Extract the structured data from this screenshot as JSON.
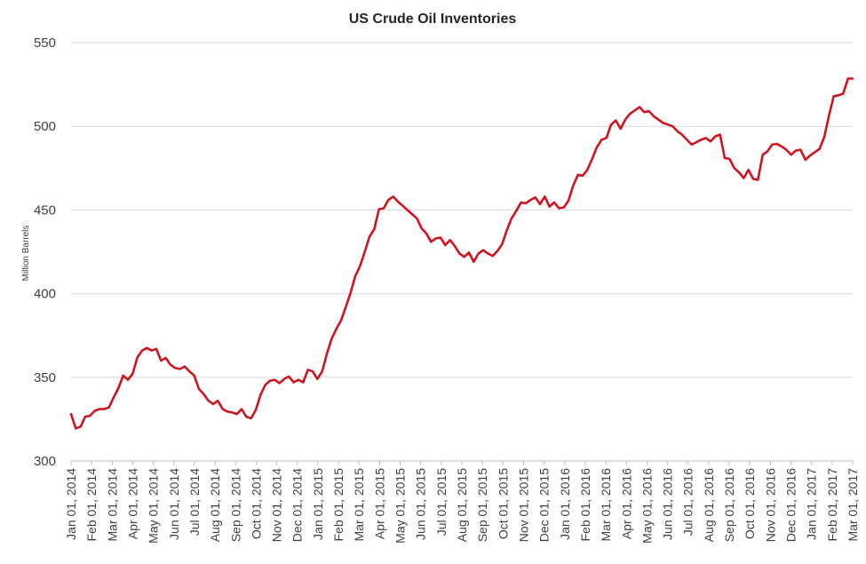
{
  "chart_data": {
    "type": "line",
    "title": "US Crude Oil Inventories",
    "xlabel": "",
    "ylabel": "Million Barrels",
    "ylim": [
      300,
      550
    ],
    "yticks": [
      300,
      350,
      400,
      450,
      500,
      550
    ],
    "grid": true,
    "legend": "none",
    "line_color": "#d0141e",
    "x_tick_labels": [
      "Jan 01, 2014",
      "Feb 01, 2014",
      "Mar 01, 2014",
      "Apr 01, 2014",
      "May 01, 2014",
      "Jun 01, 2014",
      "Jul 01, 2014",
      "Aug 01, 2014",
      "Sep 01, 2014",
      "Oct 01, 2014",
      "Nov 01, 2014",
      "Dec 01, 2014",
      "Jan 01, 2015",
      "Feb 01, 2015",
      "Mar 01, 2015",
      "Apr 01, 2015",
      "May 01, 2015",
      "Jun 01, 2015",
      "Jul 01, 2015",
      "Aug 01, 2015",
      "Sep 01, 2015",
      "Oct 01, 2015",
      "Nov 01, 2015",
      "Dec 01, 2015",
      "Jan 01, 2016",
      "Feb 01, 2016",
      "Mar 01, 2016",
      "Apr 01, 2016",
      "May 01, 2016",
      "Jun 01, 2016",
      "Jul 01, 2016",
      "Aug 01, 2016",
      "Sep 01, 2016",
      "Oct 01, 2016",
      "Nov 01, 2016",
      "Dec 01, 2016",
      "Jan 01, 2017",
      "Feb 01, 2017",
      "Mar 01, 2017"
    ],
    "x_range": [
      "2014-01-03",
      "2017-03-03"
    ],
    "series": [
      {
        "x": [
          "2014-01-03",
          "2014-01-10",
          "2014-01-17",
          "2014-01-24",
          "2014-01-31",
          "2014-02-07",
          "2014-02-14",
          "2014-02-21",
          "2014-02-28",
          "2014-03-07",
          "2014-03-14",
          "2014-03-21",
          "2014-03-28",
          "2014-04-04",
          "2014-04-11",
          "2014-04-18",
          "2014-04-25",
          "2014-05-02",
          "2014-05-09",
          "2014-05-16",
          "2014-05-23",
          "2014-05-30",
          "2014-06-06",
          "2014-06-13",
          "2014-06-20",
          "2014-06-27",
          "2014-07-04",
          "2014-07-11",
          "2014-07-18",
          "2014-07-25",
          "2014-08-01",
          "2014-08-08",
          "2014-08-15",
          "2014-08-22",
          "2014-08-29",
          "2014-09-05",
          "2014-09-12",
          "2014-09-19",
          "2014-09-26",
          "2014-10-03",
          "2014-10-10",
          "2014-10-17",
          "2014-10-24",
          "2014-10-31",
          "2014-11-07",
          "2014-11-14",
          "2014-11-21",
          "2014-11-28",
          "2014-12-05",
          "2014-12-12",
          "2014-12-19",
          "2014-12-26",
          "2015-01-02",
          "2015-01-09",
          "2015-01-16",
          "2015-01-23",
          "2015-01-30",
          "2015-02-06",
          "2015-02-13",
          "2015-02-20",
          "2015-02-27",
          "2015-03-06",
          "2015-03-13",
          "2015-03-20",
          "2015-03-27",
          "2015-04-03",
          "2015-04-10",
          "2015-04-17",
          "2015-04-24",
          "2015-05-01",
          "2015-05-08",
          "2015-05-15",
          "2015-05-22",
          "2015-05-29",
          "2015-06-05",
          "2015-06-12",
          "2015-06-19",
          "2015-06-26",
          "2015-07-03",
          "2015-07-10",
          "2015-07-17",
          "2015-07-24",
          "2015-07-31",
          "2015-08-07",
          "2015-08-14",
          "2015-08-21",
          "2015-08-28",
          "2015-09-04",
          "2015-09-11",
          "2015-09-18",
          "2015-09-25",
          "2015-10-02",
          "2015-10-09",
          "2015-10-16",
          "2015-10-23",
          "2015-10-30",
          "2015-11-06",
          "2015-11-13",
          "2015-11-20",
          "2015-11-27",
          "2015-12-04",
          "2015-12-11",
          "2015-12-18",
          "2015-12-25",
          "2016-01-01",
          "2016-01-08",
          "2016-01-15",
          "2016-01-22",
          "2016-01-29",
          "2016-02-05",
          "2016-02-12",
          "2016-02-19",
          "2016-02-26",
          "2016-03-04",
          "2016-03-11",
          "2016-03-18",
          "2016-03-25",
          "2016-04-01",
          "2016-04-08",
          "2016-04-15",
          "2016-04-22",
          "2016-04-29",
          "2016-05-06",
          "2016-05-13",
          "2016-05-20",
          "2016-05-27",
          "2016-06-03",
          "2016-06-10",
          "2016-06-17",
          "2016-06-24",
          "2016-07-01",
          "2016-07-08",
          "2016-07-15",
          "2016-07-22",
          "2016-07-29",
          "2016-08-05",
          "2016-08-12",
          "2016-08-19",
          "2016-08-26",
          "2016-09-02",
          "2016-09-09",
          "2016-09-16",
          "2016-09-23",
          "2016-09-30",
          "2016-10-07",
          "2016-10-14",
          "2016-10-21",
          "2016-10-28",
          "2016-11-04",
          "2016-11-11",
          "2016-11-18",
          "2016-11-25",
          "2016-12-02",
          "2016-12-09",
          "2016-12-16",
          "2016-12-23",
          "2016-12-30",
          "2017-01-06",
          "2017-01-13",
          "2017-01-20",
          "2017-01-27",
          "2017-02-03",
          "2017-02-10",
          "2017-02-17",
          "2017-02-24",
          "2017-03-03"
        ],
        "values": [
          328.0,
          319.5,
          320.5,
          326.5,
          327.0,
          330.0,
          331.0,
          331.0,
          332.0,
          338.0,
          343.5,
          351.0,
          348.5,
          352.0,
          362.0,
          366.0,
          367.5,
          366.0,
          367.0,
          360.0,
          361.5,
          357.5,
          355.5,
          355.0,
          356.5,
          353.5,
          351.0,
          343.0,
          340.0,
          336.0,
          334.0,
          336.0,
          331.0,
          329.5,
          329.0,
          328.0,
          331.0,
          326.5,
          325.5,
          330.5,
          339.5,
          345.5,
          348.0,
          348.5,
          346.5,
          349.0,
          350.5,
          347.0,
          348.5,
          347.0,
          354.5,
          353.5,
          349.0,
          353.5,
          364.0,
          373.0,
          379.0,
          384.0,
          392.0,
          400.5,
          410.5,
          416.5,
          425.0,
          434.0,
          438.5,
          450.5,
          451.0,
          456.0,
          458.0,
          455.0,
          452.5,
          450.0,
          447.5,
          445.0,
          439.0,
          436.0,
          431.0,
          433.0,
          433.5,
          429.0,
          432.0,
          428.5,
          424.0,
          422.0,
          424.5,
          419.0,
          424.0,
          426.0,
          424.0,
          422.5,
          425.5,
          429.5,
          438.0,
          445.0,
          449.5,
          454.5,
          454.0,
          456.0,
          457.5,
          453.5,
          458.0,
          452.0,
          454.5,
          451.0,
          451.5,
          455.5,
          464.5,
          471.0,
          470.5,
          474.0,
          480.5,
          487.5,
          492.0,
          493.0,
          501.0,
          503.5,
          498.5,
          504.0,
          507.5,
          509.5,
          511.5,
          508.5,
          509.0,
          506.0,
          504.0,
          502.0,
          501.0,
          500.0,
          497.0,
          495.0,
          492.0,
          489.0,
          490.5,
          492.0,
          493.0,
          491.0,
          494.0,
          495.0,
          481.0,
          480.5,
          475.0,
          472.5,
          469.0,
          474.0,
          468.5,
          468.0,
          483.0,
          485.0,
          489.0,
          489.5,
          488.0,
          486.0,
          483.0,
          485.5,
          486.0,
          480.0,
          482.5,
          484.5,
          486.5,
          493.5,
          506.5,
          518.0,
          518.5,
          519.5,
          528.5,
          528.5
        ]
      }
    ]
  }
}
